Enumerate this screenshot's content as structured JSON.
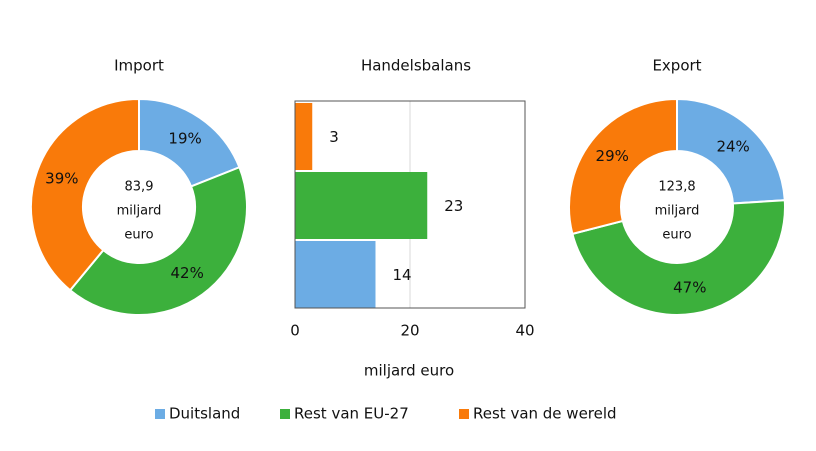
{
  "chart_data": [
    {
      "type": "donut",
      "title": "Import",
      "center_text": [
        "83,9",
        "miljard",
        "euro"
      ],
      "categories": [
        "Duitsland",
        "Rest van EU-27",
        "Rest van de wereld"
      ],
      "values": [
        19,
        42,
        39
      ],
      "value_labels": [
        "19%",
        "42%",
        "39%"
      ],
      "colors": [
        "#6cace4",
        "#3cb03c",
        "#f97a0a"
      ]
    },
    {
      "type": "bar",
      "title": "Handelsbalans",
      "x_label": "miljard euro",
      "categories": [
        null,
        null,
        null
      ],
      "values": [
        3,
        23,
        14
      ],
      "colors": [
        "#f97a0a",
        "#3cb03c",
        "#6cace4"
      ],
      "xlim": [
        0,
        40
      ],
      "xticks": [
        0,
        20,
        40
      ],
      "grid": true
    },
    {
      "type": "donut",
      "title": "Export",
      "center_text": [
        "123,8",
        "miljard",
        "euro"
      ],
      "categories": [
        "Duitsland",
        "Rest van EU-27",
        "Rest van de wereld"
      ],
      "values": [
        24,
        47,
        29
      ],
      "value_labels": [
        "24%",
        "47%",
        "29%"
      ],
      "colors": [
        "#6cace4",
        "#3cb03c",
        "#f97a0a"
      ]
    }
  ],
  "legend": [
    {
      "name": "Duitsland",
      "color": "#6cace4"
    },
    {
      "name": "Rest van EU-27",
      "color": "#3cb03c"
    },
    {
      "name": "Rest van de wereld",
      "color": "#f97a0a"
    }
  ]
}
